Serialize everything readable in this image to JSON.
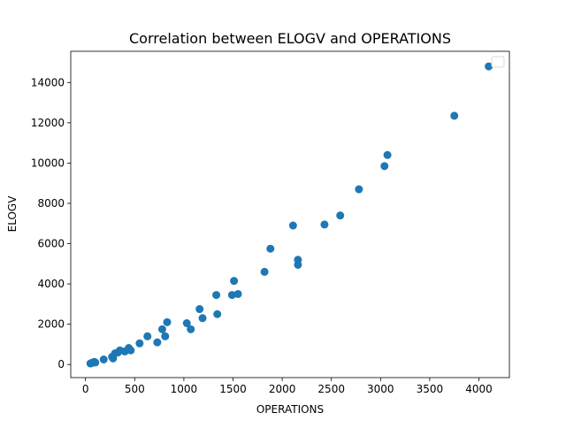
{
  "chart_data": {
    "type": "scatter",
    "title": "Correlation between ELOGV and OPERATIONS",
    "xlabel": "OPERATIONS",
    "ylabel": "ELOGV",
    "xlim": [
      -150,
      4310
    ],
    "ylim": [
      -650,
      15550
    ],
    "xticks": [
      0,
      500,
      1000,
      1500,
      2000,
      2500,
      3000,
      3500,
      4000
    ],
    "yticks": [
      0,
      2000,
      4000,
      6000,
      8000,
      10000,
      12000,
      14000
    ],
    "grid": false,
    "legend": {
      "placement": "top-right",
      "entries": []
    },
    "marker_color": "#1f77b4",
    "series": [
      {
        "points": [
          [
            50,
            50
          ],
          [
            60,
            70
          ],
          [
            70,
            90
          ],
          [
            80,
            110
          ],
          [
            90,
            130
          ],
          [
            100,
            100
          ],
          [
            185,
            250
          ],
          [
            270,
            380
          ],
          [
            280,
            300
          ],
          [
            300,
            550
          ],
          [
            330,
            600
          ],
          [
            350,
            700
          ],
          [
            400,
            650
          ],
          [
            440,
            820
          ],
          [
            460,
            700
          ],
          [
            550,
            1050
          ],
          [
            630,
            1400
          ],
          [
            730,
            1100
          ],
          [
            780,
            1750
          ],
          [
            810,
            1400
          ],
          [
            830,
            2100
          ],
          [
            1030,
            2050
          ],
          [
            1070,
            1750
          ],
          [
            1160,
            2750
          ],
          [
            1190,
            2300
          ],
          [
            1330,
            3450
          ],
          [
            1340,
            2500
          ],
          [
            1490,
            3450
          ],
          [
            1510,
            4150
          ],
          [
            1550,
            3500
          ],
          [
            1820,
            4600
          ],
          [
            1880,
            5750
          ],
          [
            2110,
            6900
          ],
          [
            2160,
            4950
          ],
          [
            2160,
            5200
          ],
          [
            2430,
            6950
          ],
          [
            2590,
            7400
          ],
          [
            2780,
            8700
          ],
          [
            3040,
            9850
          ],
          [
            3070,
            10400
          ],
          [
            3750,
            12350
          ],
          [
            4100,
            14800
          ]
        ]
      }
    ]
  }
}
